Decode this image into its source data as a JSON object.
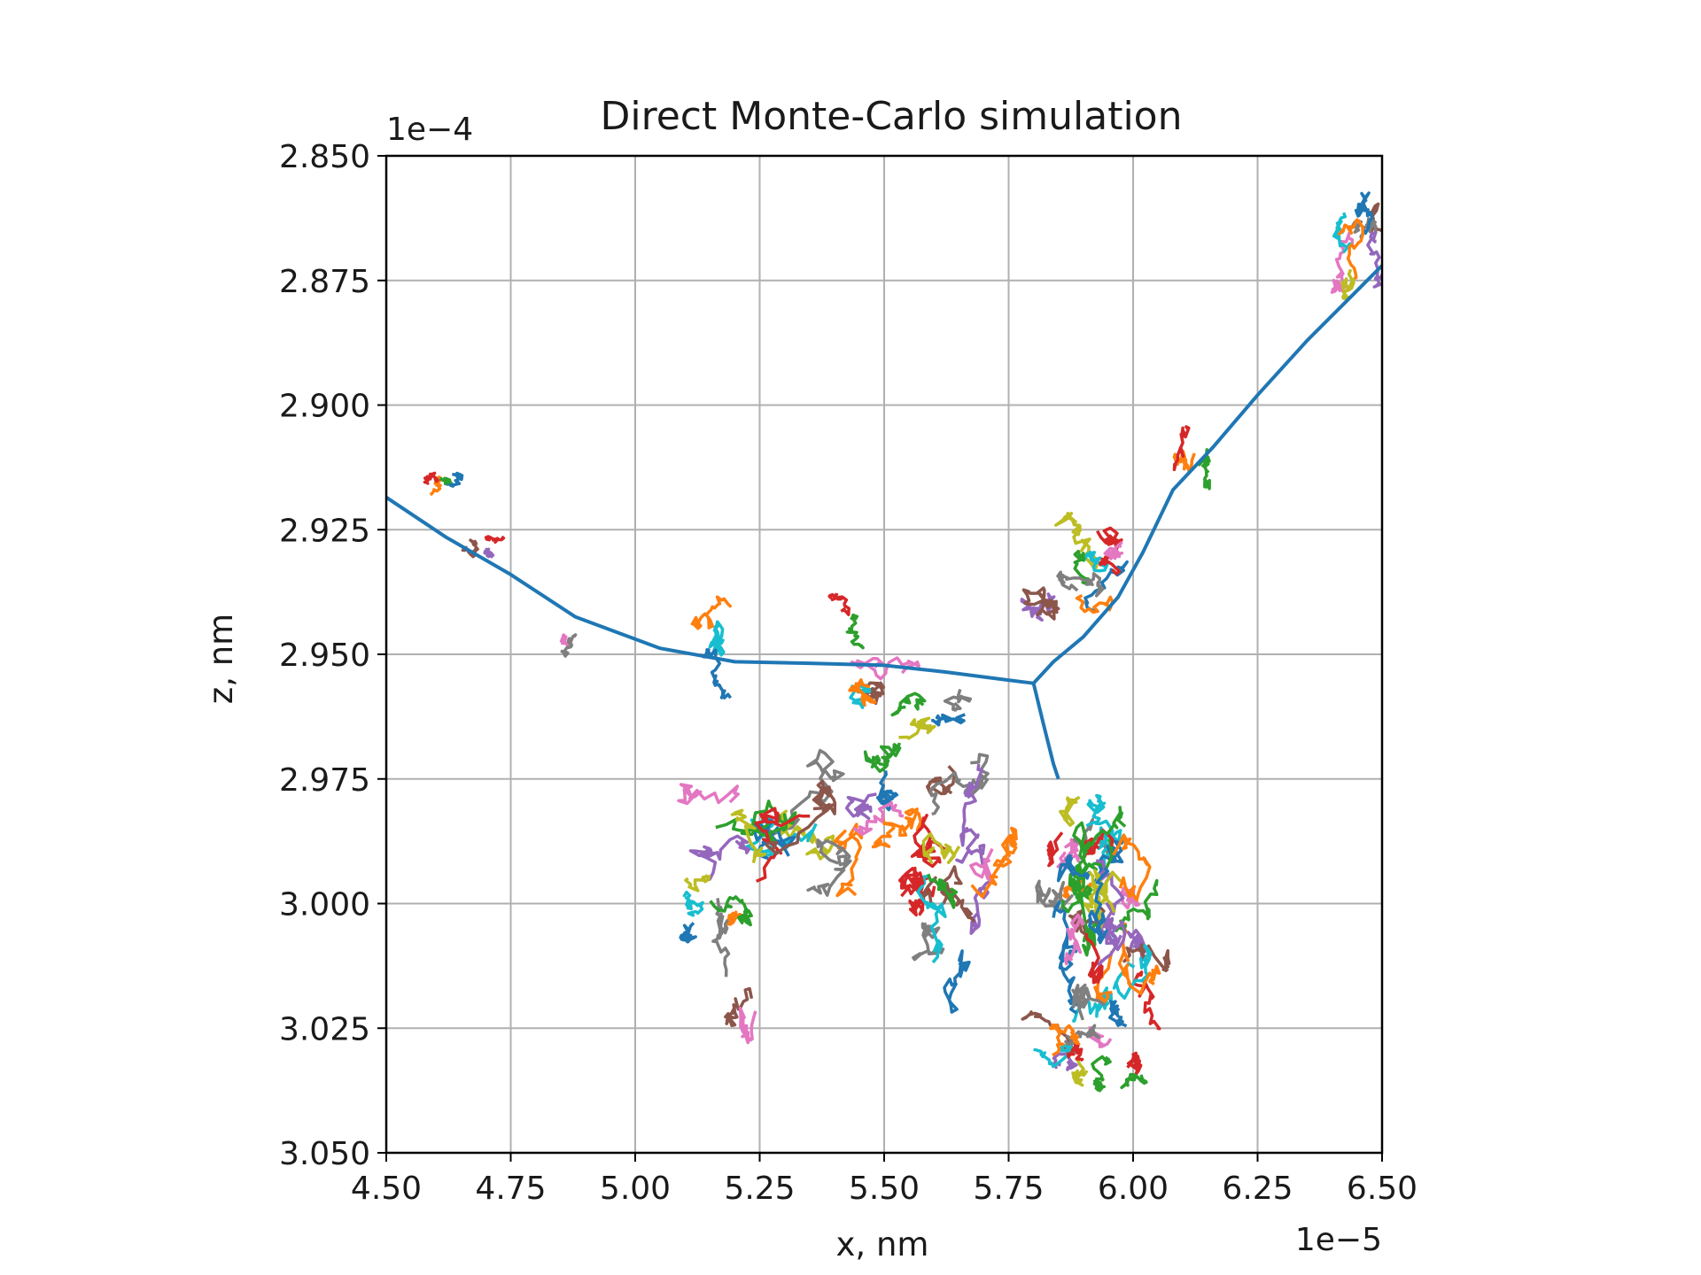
{
  "chart_data": {
    "type": "line",
    "title": "Direct Monte-Carlo simulation",
    "xlabel": "x, nm",
    "ylabel": "z, nm",
    "x_offset_label": "1e−5",
    "y_offset_label": "1e−4",
    "xlim": [
      4.5,
      6.5
    ],
    "ylim": [
      2.85,
      3.05
    ],
    "y_inverted": true,
    "grid": true,
    "x_ticks": [
      "4.50",
      "4.75",
      "5.00",
      "5.25",
      "5.50",
      "5.75",
      "6.00",
      "6.25",
      "6.50"
    ],
    "y_ticks": [
      "2.850",
      "2.875",
      "2.900",
      "2.925",
      "2.950",
      "2.975",
      "3.000",
      "3.025",
      "3.050"
    ],
    "colors": [
      "#1f77b4",
      "#ff7f0e",
      "#2ca02c",
      "#d62728",
      "#9467bd",
      "#8c564b",
      "#e377c2",
      "#7f7f7f",
      "#bcbd22",
      "#17becf"
    ],
    "series": [
      {
        "color": "#1f77b4",
        "x": [
          4.5,
          4.62,
          4.75,
          4.88,
          5.05,
          5.2,
          5.35,
          5.5,
          5.62,
          5.72,
          5.8
        ],
        "y": [
          2.9185,
          2.9265,
          2.934,
          2.9425,
          2.9488,
          2.9515,
          2.9518,
          2.9522,
          2.9535,
          2.9548,
          2.9558
        ]
      },
      {
        "color": "#1f77b4",
        "x": [
          5.8,
          5.84,
          5.9,
          5.97,
          6.02,
          6.08,
          6.16,
          6.25,
          6.35,
          6.43,
          6.5
        ],
        "y": [
          2.9558,
          2.9515,
          2.9465,
          2.9385,
          2.9295,
          2.917,
          2.9085,
          2.898,
          2.887,
          2.879,
          2.872
        ]
      },
      {
        "color": "#1f77b4",
        "x": [
          5.8,
          5.82,
          5.84,
          5.85
        ],
        "y": [
          2.9558,
          2.964,
          2.972,
          2.975
        ]
      }
    ],
    "walk_clusters": [
      {
        "cx": 4.62,
        "cz": 2.915,
        "spread_x": 0.04,
        "spread_z": 0.003,
        "count": 4
      },
      {
        "cx": 4.68,
        "cz": 2.928,
        "spread_x": 0.03,
        "spread_z": 0.003,
        "count": 3
      },
      {
        "cx": 4.89,
        "cz": 2.95,
        "spread_x": 0.03,
        "spread_z": 0.004,
        "count": 2
      },
      {
        "cx": 5.17,
        "cz": 2.948,
        "spread_x": 0.05,
        "spread_z": 0.008,
        "count": 3
      },
      {
        "cx": 5.45,
        "cz": 2.945,
        "spread_x": 0.05,
        "spread_z": 0.004,
        "count": 2
      },
      {
        "cx": 5.55,
        "cz": 2.958,
        "spread_x": 0.1,
        "spread_z": 0.007,
        "count": 8
      },
      {
        "cx": 5.9,
        "cz": 2.935,
        "spread_x": 0.08,
        "spread_z": 0.008,
        "count": 10
      },
      {
        "cx": 6.12,
        "cz": 2.918,
        "spread_x": 0.04,
        "spread_z": 0.01,
        "count": 3
      },
      {
        "cx": 6.45,
        "cz": 2.868,
        "spread_x": 0.05,
        "spread_z": 0.008,
        "count": 8
      },
      {
        "cx": 5.3,
        "cz": 2.985,
        "spread_x": 0.12,
        "spread_z": 0.012,
        "count": 12
      },
      {
        "cx": 5.55,
        "cz": 2.98,
        "spread_x": 0.1,
        "spread_z": 0.01,
        "count": 8
      },
      {
        "cx": 5.65,
        "cz": 3.0,
        "spread_x": 0.08,
        "spread_z": 0.012,
        "count": 12
      },
      {
        "cx": 5.92,
        "cz": 2.99,
        "spread_x": 0.08,
        "spread_z": 0.012,
        "count": 18
      },
      {
        "cx": 5.95,
        "cz": 3.01,
        "spread_x": 0.07,
        "spread_z": 0.012,
        "count": 16
      },
      {
        "cx": 5.92,
        "cz": 3.03,
        "spread_x": 0.07,
        "spread_z": 0.006,
        "count": 12
      },
      {
        "cx": 5.2,
        "cz": 3.015,
        "spread_x": 0.05,
        "spread_z": 0.012,
        "count": 3
      },
      {
        "cx": 5.15,
        "cz": 3.0,
        "spread_x": 0.06,
        "spread_z": 0.006,
        "count": 5
      }
    ]
  }
}
